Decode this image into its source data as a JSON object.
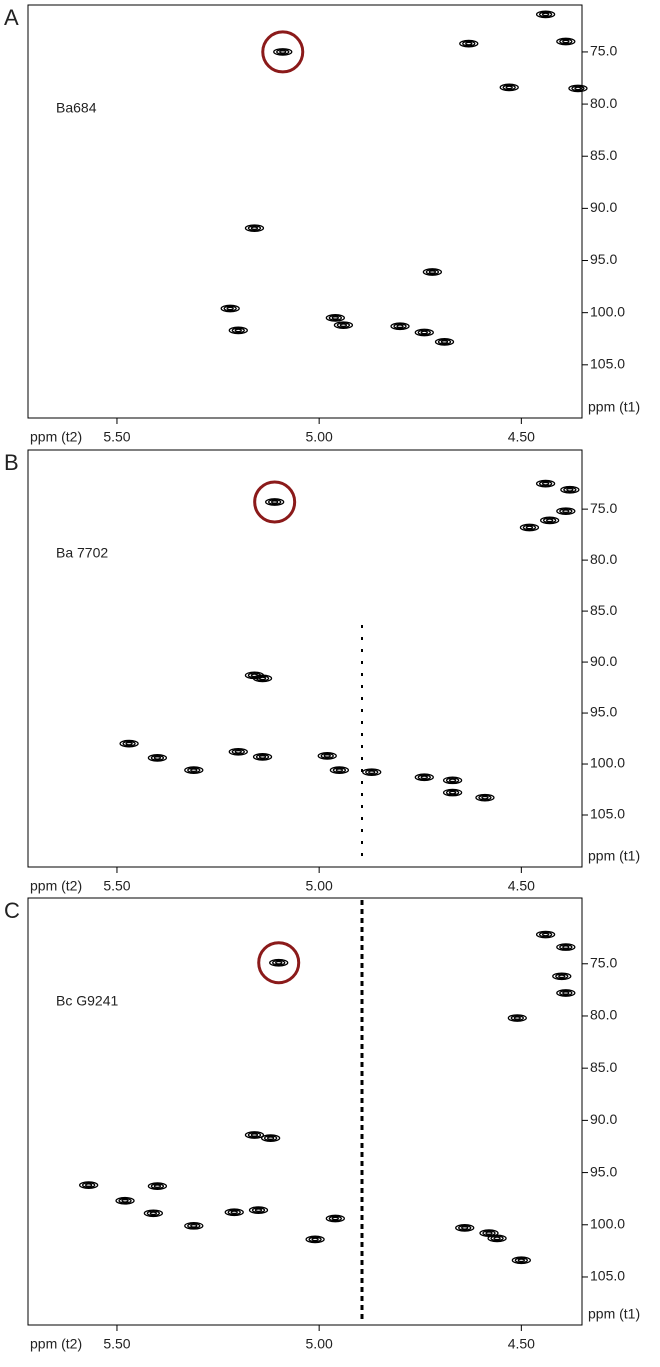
{
  "chart_data": [
    {
      "type": "scatter",
      "label": "A",
      "title": "Ba684",
      "xlabel": "ppm (t2)",
      "ylabel": "ppm (t1)",
      "x": [
        5.09,
        5.16,
        5.22,
        5.2,
        4.96,
        4.94,
        4.8,
        4.74,
        4.72,
        4.69,
        4.63,
        4.44,
        4.39,
        4.53,
        4.36
      ],
      "y": [
        75.0,
        91.9,
        99.6,
        101.7,
        100.5,
        101.2,
        101.3,
        101.9,
        96.1,
        102.8,
        74.2,
        71.4,
        74.0,
        78.4,
        78.5
      ],
      "xlim": [
        5.72,
        4.35
      ],
      "ylim": [
        110.1,
        70.5
      ],
      "xticks": [
        {
          "value": 5.5,
          "label": "5.50"
        },
        {
          "value": 5.0,
          "label": "5.00"
        },
        {
          "value": 4.5,
          "label": "4.50"
        }
      ],
      "yticks": [
        {
          "value": 75,
          "label": "75.0"
        },
        {
          "value": 80,
          "label": "80.0"
        },
        {
          "value": 85,
          "label": "85.0"
        },
        {
          "value": 90,
          "label": "90.0"
        },
        {
          "value": 95,
          "label": "95.0"
        },
        {
          "value": 100,
          "label": "100.0"
        },
        {
          "value": 105,
          "label": "105.0"
        }
      ]
    },
    {
      "type": "scatter",
      "label": "B",
      "title": "Ba 7702",
      "xlabel": "ppm (t2)",
      "ylabel": "ppm (t1)",
      "x": [
        5.11,
        5.16,
        5.14,
        5.47,
        5.4,
        5.31,
        5.2,
        5.14,
        4.98,
        4.95,
        4.87,
        4.74,
        4.67,
        4.67,
        4.59,
        4.44,
        4.38,
        4.39,
        4.43,
        4.48
      ],
      "y": [
        74.3,
        91.3,
        91.6,
        98.0,
        99.4,
        100.6,
        98.8,
        99.3,
        99.2,
        100.6,
        100.8,
        101.3,
        101.6,
        102.8,
        103.3,
        72.5,
        73.1,
        75.2,
        76.1,
        76.8
      ],
      "xlim": [
        5.72,
        4.35
      ],
      "ylim": [
        110.1,
        69.2
      ],
      "xticks": [
        {
          "value": 5.5,
          "label": "5.50"
        },
        {
          "value": 5.0,
          "label": "5.00"
        },
        {
          "value": 4.5,
          "label": "4.50"
        }
      ],
      "yticks": [
        {
          "value": 75,
          "label": "75.0"
        },
        {
          "value": 80,
          "label": "80.0"
        },
        {
          "value": 85,
          "label": "85.0"
        },
        {
          "value": 90,
          "label": "90.0"
        },
        {
          "value": 95,
          "label": "95.0"
        },
        {
          "value": 100,
          "label": "100.0"
        },
        {
          "value": 105,
          "label": "105.0"
        }
      ]
    },
    {
      "type": "scatter",
      "label": "C",
      "title": "Bc G9241",
      "xlabel": "ppm (t2)",
      "ylabel": "ppm (t1)",
      "x": [
        5.1,
        5.16,
        5.12,
        5.57,
        5.48,
        5.41,
        5.4,
        5.31,
        5.21,
        5.15,
        5.01,
        4.96,
        4.64,
        4.58,
        4.56,
        4.5,
        4.44,
        4.39,
        4.4,
        4.39,
        4.51
      ],
      "y": [
        74.9,
        91.4,
        91.7,
        96.2,
        97.7,
        98.9,
        96.3,
        100.1,
        98.8,
        98.6,
        101.4,
        99.4,
        100.3,
        100.8,
        101.3,
        103.4,
        72.2,
        73.4,
        76.2,
        77.8,
        80.2
      ],
      "xlim": [
        5.72,
        4.35
      ],
      "ylim": [
        109.6,
        68.7
      ],
      "xticks": [
        {
          "value": 5.5,
          "label": "5.50"
        },
        {
          "value": 5.0,
          "label": "5.00"
        },
        {
          "value": 4.5,
          "label": "4.50"
        }
      ],
      "yticks": [
        {
          "value": 75,
          "label": "75.0"
        },
        {
          "value": 80,
          "label": "80.0"
        },
        {
          "value": 85,
          "label": "85.0"
        },
        {
          "value": 90,
          "label": "90.0"
        },
        {
          "value": 95,
          "label": "95.0"
        },
        {
          "value": 100,
          "label": "100.0"
        },
        {
          "value": 105,
          "label": "105.0"
        }
      ]
    }
  ]
}
